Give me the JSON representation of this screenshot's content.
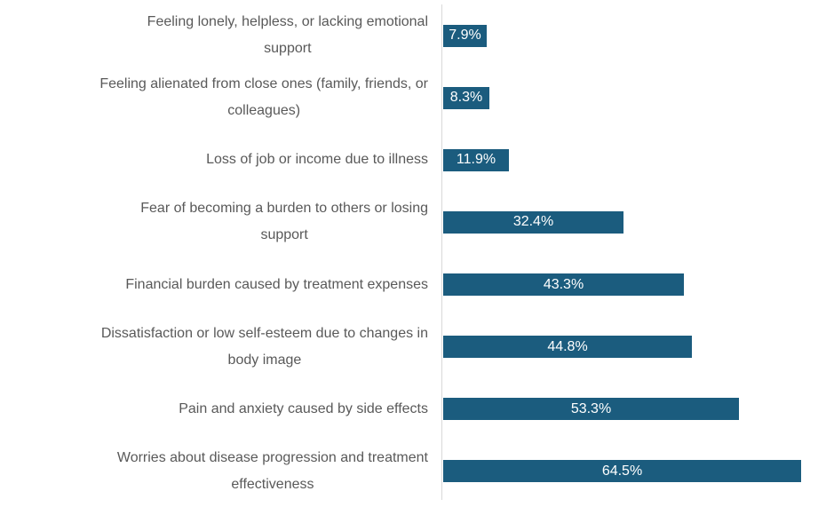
{
  "chart_data": {
    "type": "bar",
    "orientation": "horizontal",
    "title": "",
    "xlabel": "",
    "ylabel": "",
    "grid": false,
    "legend": false,
    "xlim": [
      0,
      67.5
    ],
    "categories": [
      "Feeling lonely, helpless, or lacking emotional\nsupport",
      "Feeling alienated from close ones (family, friends, or\ncolleagues)",
      "Loss of job or income due to illness",
      "Fear of becoming a burden to others or losing\nsupport",
      "Financial burden caused by treatment expenses",
      "Dissatisfaction or low self-esteem due to changes in\nbody image",
      "Pain and anxiety caused by side effects",
      "Worries about disease progression and treatment\neffectiveness"
    ],
    "values": [
      7.9,
      8.3,
      11.9,
      32.4,
      43.3,
      44.8,
      53.3,
      64.5
    ],
    "value_labels": [
      "7.9%",
      "8.3%",
      "11.9%",
      "32.4%",
      "43.3%",
      "44.8%",
      "53.3%",
      "64.5%"
    ],
    "colors": {
      "bar": "#1B5C7E",
      "category_label": "#595959",
      "value_label": "#FFFFFF",
      "axis_line": "#D9D9D9",
      "background": "#FFFFFF"
    }
  }
}
